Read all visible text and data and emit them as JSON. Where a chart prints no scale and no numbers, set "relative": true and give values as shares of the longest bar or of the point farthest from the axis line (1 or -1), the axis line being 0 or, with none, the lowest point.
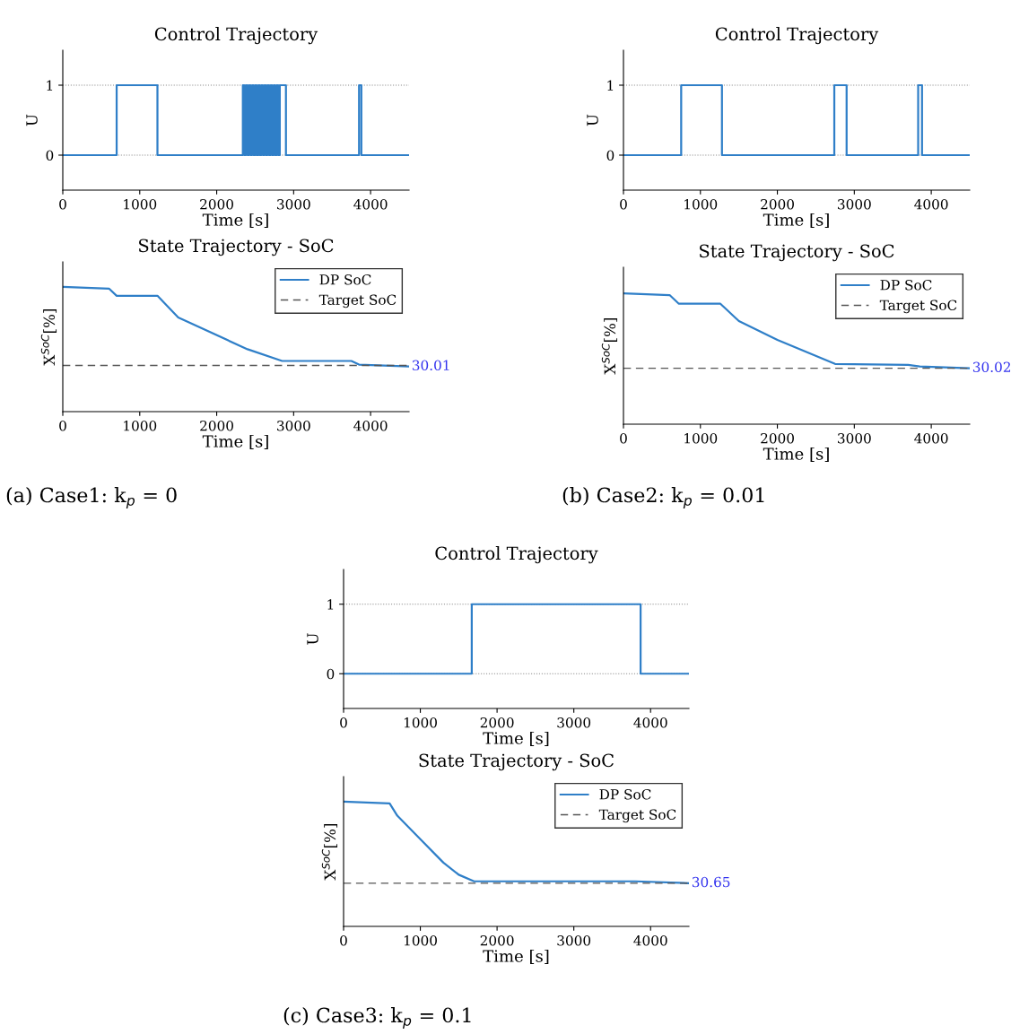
{
  "chart_data": [
    {
      "type": "step",
      "title": "Control Trajectory",
      "xlabel": "Time [s]",
      "ylabel": "U",
      "xlim": [
        0,
        4500
      ],
      "xticks": [
        0,
        1000,
        2000,
        3000,
        4000
      ],
      "ylim": [
        -0.5,
        1.5
      ],
      "yticks": [
        0,
        1
      ],
      "grid": "y",
      "series": [
        {
          "color": "#2f7fc8",
          "x": [
            0,
            700,
            1230,
            2340,
            2360,
            2380,
            2400,
            2420,
            2440,
            2460,
            2480,
            2500,
            2520,
            2540,
            2560,
            2580,
            2600,
            2620,
            2640,
            2660,
            2680,
            2700,
            2720,
            2740,
            2760,
            2780,
            2800,
            2820,
            2840,
            2900,
            3850,
            3880,
            4500
          ],
          "values": [
            0,
            1,
            0,
            1,
            0,
            1,
            0,
            1,
            0,
            1,
            0,
            1,
            0,
            1,
            0,
            1,
            0,
            1,
            0,
            1,
            0,
            1,
            0,
            1,
            0,
            1,
            0,
            1,
            1,
            0,
            1,
            0,
            0
          ]
        }
      ]
    },
    {
      "type": "line",
      "title": "State Trajectory - SoC",
      "xlabel": "Time [s]",
      "ylabel": "X$^{SoC}$[%]",
      "xlim": [
        0,
        4500
      ],
      "xticks": [
        0,
        1000,
        2000,
        3000,
        4000
      ],
      "relative": true,
      "tick_labels": "x",
      "legend": "top right",
      "series": [
        {
          "name": "DP SoC",
          "color": "#2f7fc8",
          "line_style": "solid",
          "x": [
            0,
            600,
            700,
            1230,
            1500,
            2400,
            2850,
            3750,
            3850,
            4500
          ],
          "values": [
            1,
            0.986,
            0.928,
            0.928,
            0.754,
            0.5,
            0.406,
            0.406,
            0.377,
            0.362
          ]
        },
        {
          "name": "Target SoC",
          "color": "#555555",
          "line_style": "dashed",
          "x": [
            0,
            4500
          ],
          "values": [
            0.37,
            0.37
          ]
        }
      ],
      "annotations": [
        "30.01",
        "(a) Case1: k$_{p}$ = 0"
      ]
    },
    {
      "type": "step",
      "title": "Control Trajectory",
      "xlabel": "Time [s]",
      "ylabel": "U",
      "xlim": [
        0,
        4500
      ],
      "xticks": [
        0,
        1000,
        2000,
        3000,
        4000
      ],
      "ylim": [
        -0.5,
        1.5
      ],
      "yticks": [
        0,
        1
      ],
      "grid": "y",
      "series": [
        {
          "color": "#2f7fc8",
          "x": [
            0,
            750,
            1280,
            2740,
            2900,
            3830,
            3880,
            4500
          ],
          "values": [
            0,
            1,
            0,
            1,
            0,
            1,
            0,
            0
          ]
        }
      ]
    },
    {
      "type": "line",
      "title": "State Trajectory - SoC",
      "xlabel": "Time [s]",
      "ylabel": "X$^{SoC}$[%]",
      "xlim": [
        0,
        4500
      ],
      "xticks": [
        0,
        1000,
        2000,
        3000,
        4000
      ],
      "relative": true,
      "tick_labels": "x",
      "legend": "top right",
      "series": [
        {
          "name": "DP SoC",
          "color": "#2f7fc8",
          "line_style": "solid",
          "x": [
            0,
            600,
            720,
            1260,
            1500,
            2000,
            2750,
            3700,
            3850,
            4500
          ],
          "values": [
            1,
            0.987,
            0.921,
            0.921,
            0.789,
            0.645,
            0.461,
            0.454,
            0.441,
            0.428
          ]
        },
        {
          "name": "Target SoC",
          "color": "#555555",
          "line_style": "dashed",
          "x": [
            0,
            4500
          ],
          "values": [
            0.428,
            0.428
          ]
        }
      ],
      "annotations": [
        "30.02",
        "(b) Case2: k$_{p}$ = 0.01"
      ]
    },
    {
      "type": "step",
      "title": "Control Trajectory",
      "xlabel": "Time [s]",
      "ylabel": "U",
      "xlim": [
        0,
        4500
      ],
      "xticks": [
        0,
        1000,
        2000,
        3000,
        4000
      ],
      "ylim": [
        -0.5,
        1.5
      ],
      "yticks": [
        0,
        1
      ],
      "grid": "y",
      "series": [
        {
          "color": "#2f7fc8",
          "x": [
            0,
            1670,
            3870,
            4500
          ],
          "values": [
            0,
            1,
            0,
            0
          ]
        }
      ]
    },
    {
      "type": "line",
      "title": "State Trajectory - SoC",
      "xlabel": "Time [s]",
      "ylabel": "X$^{SoC}$[%]",
      "xlim": [
        0,
        4500
      ],
      "xticks": [
        0,
        1000,
        2000,
        3000,
        4000
      ],
      "relative": true,
      "tick_labels": "x",
      "legend": "top right",
      "series": [
        {
          "name": "DP SoC",
          "color": "#2f7fc8",
          "line_style": "solid",
          "x": [
            0,
            600,
            700,
            1000,
            1300,
            1500,
            1700,
            3800,
            4500
          ],
          "values": [
            1,
            0.985,
            0.887,
            0.699,
            0.511,
            0.414,
            0.361,
            0.361,
            0.346
          ]
        },
        {
          "name": "Target SoC",
          "color": "#555555",
          "line_style": "dashed",
          "x": [
            0,
            4500
          ],
          "values": [
            0.346,
            0.346
          ]
        }
      ],
      "annotations": [
        "30.65",
        "(c) Case3: k$_{p}$ = 0.1"
      ]
    }
  ]
}
